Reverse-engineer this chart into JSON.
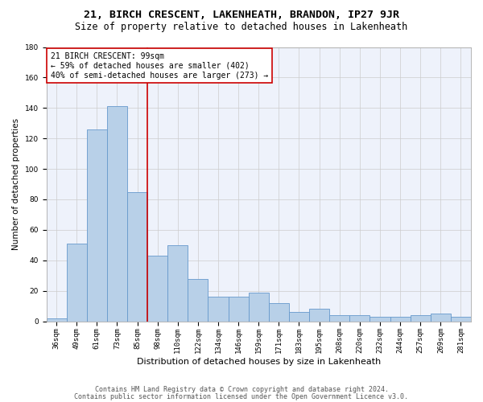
{
  "title1": "21, BIRCH CRESCENT, LAKENHEATH, BRANDON, IP27 9JR",
  "title2": "Size of property relative to detached houses in Lakenheath",
  "xlabel": "Distribution of detached houses by size in Lakenheath",
  "ylabel": "Number of detached properties",
  "categories": [
    "36sqm",
    "49sqm",
    "61sqm",
    "73sqm",
    "85sqm",
    "98sqm",
    "110sqm",
    "122sqm",
    "134sqm",
    "146sqm",
    "159sqm",
    "171sqm",
    "183sqm",
    "195sqm",
    "208sqm",
    "220sqm",
    "232sqm",
    "244sqm",
    "257sqm",
    "269sqm",
    "281sqm"
  ],
  "values": [
    2,
    51,
    126,
    141,
    85,
    43,
    50,
    28,
    16,
    16,
    19,
    12,
    6,
    8,
    4,
    4,
    3,
    3,
    4,
    5,
    3
  ],
  "bar_color": "#b8d0e8",
  "bar_edge_color": "#6699cc",
  "vline_color": "#cc0000",
  "annotation_line1": "21 BIRCH CRESCENT: 99sqm",
  "annotation_line2": "← 59% of detached houses are smaller (402)",
  "annotation_line3": "40% of semi-detached houses are larger (273) →",
  "annotation_box_color": "#ffffff",
  "annotation_box_edge": "#cc0000",
  "ylim": [
    0,
    180
  ],
  "yticks": [
    0,
    20,
    40,
    60,
    80,
    100,
    120,
    140,
    160,
    180
  ],
  "background_color": "#eef2fb",
  "footer1": "Contains HM Land Registry data © Crown copyright and database right 2024.",
  "footer2": "Contains public sector information licensed under the Open Government Licence v3.0.",
  "title1_fontsize": 9.5,
  "title2_fontsize": 8.5,
  "xlabel_fontsize": 8,
  "ylabel_fontsize": 7.5,
  "tick_fontsize": 6.5,
  "annotation_fontsize": 7,
  "footer_fontsize": 6
}
